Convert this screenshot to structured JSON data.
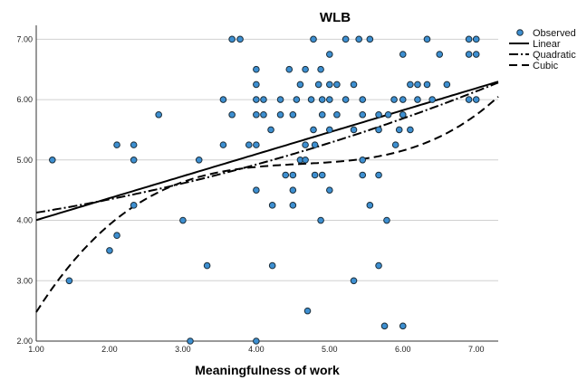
{
  "chart_data": {
    "type": "scatter",
    "title": "WLB",
    "xlabel": "Meaningfulness of work",
    "ylabel": "",
    "xlim": [
      1.0,
      7.3
    ],
    "ylim": [
      2.0,
      7.2
    ],
    "x_ticks": [
      "1.00",
      "2.00",
      "3.00",
      "4.00",
      "5.00",
      "6.00",
      "7.00"
    ],
    "y_ticks": [
      "2.00",
      "3.00",
      "4.00",
      "5.00",
      "6.00",
      "7.00"
    ],
    "grid": "horizontal",
    "legend_position": "top-right",
    "point_color": "#3d8fd1",
    "series": [
      {
        "name": "Observed",
        "kind": "points",
        "points": [
          [
            1.22,
            5.0
          ],
          [
            1.45,
            3.0
          ],
          [
            2.0,
            3.5
          ],
          [
            2.1,
            3.75
          ],
          [
            2.1,
            5.25
          ],
          [
            2.33,
            5.25
          ],
          [
            2.33,
            5.0
          ],
          [
            2.33,
            4.25
          ],
          [
            2.67,
            5.75
          ],
          [
            3.0,
            4.0
          ],
          [
            3.1,
            2.0
          ],
          [
            3.33,
            3.25
          ],
          [
            3.22,
            5.0
          ],
          [
            3.55,
            5.25
          ],
          [
            3.55,
            6.0
          ],
          [
            3.67,
            5.75
          ],
          [
            3.67,
            7.0
          ],
          [
            3.78,
            7.0
          ],
          [
            3.9,
            5.25
          ],
          [
            4.0,
            4.5
          ],
          [
            4.0,
            6.5
          ],
          [
            4.0,
            6.25
          ],
          [
            4.0,
            6.0
          ],
          [
            4.0,
            5.75
          ],
          [
            4.0,
            5.25
          ],
          [
            4.0,
            2.0
          ],
          [
            4.1,
            6.0
          ],
          [
            4.1,
            5.75
          ],
          [
            4.2,
            5.5
          ],
          [
            4.22,
            4.25
          ],
          [
            4.22,
            3.25
          ],
          [
            4.33,
            6.0
          ],
          [
            4.33,
            5.75
          ],
          [
            4.4,
            4.75
          ],
          [
            4.45,
            6.5
          ],
          [
            4.5,
            5.75
          ],
          [
            4.5,
            4.75
          ],
          [
            4.5,
            4.5
          ],
          [
            4.5,
            4.25
          ],
          [
            4.55,
            6.0
          ],
          [
            4.6,
            6.25
          ],
          [
            4.6,
            5.0
          ],
          [
            4.67,
            6.5
          ],
          [
            4.67,
            5.25
          ],
          [
            4.67,
            5.0
          ],
          [
            4.7,
            2.5
          ],
          [
            4.75,
            6.0
          ],
          [
            4.78,
            7.0
          ],
          [
            4.78,
            5.5
          ],
          [
            4.8,
            5.25
          ],
          [
            4.8,
            4.75
          ],
          [
            4.85,
            6.25
          ],
          [
            4.88,
            6.5
          ],
          [
            4.9,
            6.0
          ],
          [
            4.9,
            5.75
          ],
          [
            4.9,
            4.75
          ],
          [
            4.88,
            4.0
          ],
          [
            5.0,
            6.25
          ],
          [
            5.0,
            6.0
          ],
          [
            5.0,
            5.5
          ],
          [
            5.0,
            4.5
          ],
          [
            5.0,
            6.75
          ],
          [
            5.1,
            6.25
          ],
          [
            5.1,
            5.75
          ],
          [
            5.22,
            7.0
          ],
          [
            5.22,
            6.0
          ],
          [
            5.33,
            6.25
          ],
          [
            5.33,
            5.5
          ],
          [
            5.33,
            3.0
          ],
          [
            5.4,
            7.0
          ],
          [
            5.45,
            6.0
          ],
          [
            5.45,
            5.75
          ],
          [
            5.45,
            5.0
          ],
          [
            5.45,
            4.75
          ],
          [
            5.55,
            7.0
          ],
          [
            5.55,
            4.25
          ],
          [
            5.67,
            5.75
          ],
          [
            5.67,
            5.5
          ],
          [
            5.67,
            4.75
          ],
          [
            5.67,
            3.25
          ],
          [
            5.75,
            2.25
          ],
          [
            5.78,
            4.0
          ],
          [
            5.8,
            5.75
          ],
          [
            5.88,
            6.0
          ],
          [
            5.9,
            5.25
          ],
          [
            5.95,
            5.5
          ],
          [
            6.0,
            6.75
          ],
          [
            6.0,
            6.0
          ],
          [
            6.0,
            5.75
          ],
          [
            6.0,
            2.25
          ],
          [
            6.1,
            6.25
          ],
          [
            6.1,
            5.5
          ],
          [
            6.2,
            6.25
          ],
          [
            6.2,
            6.0
          ],
          [
            6.33,
            7.0
          ],
          [
            6.33,
            6.25
          ],
          [
            6.4,
            6.0
          ],
          [
            6.5,
            6.75
          ],
          [
            6.6,
            6.25
          ],
          [
            6.9,
            7.0
          ],
          [
            6.9,
            6.75
          ],
          [
            7.0,
            7.0
          ],
          [
            7.0,
            6.75
          ],
          [
            7.0,
            6.0
          ],
          [
            6.9,
            6.0
          ]
        ]
      },
      {
        "name": "Linear",
        "kind": "fit",
        "dash": "solid",
        "coef": [
          3.64,
          0.364
        ]
      },
      {
        "name": "Quadratic",
        "kind": "fit",
        "dash": "dashdot",
        "coef": [
          3.955,
          0.15,
          0.0231
        ]
      },
      {
        "name": "Cubic",
        "kind": "fit",
        "dash": "dashed",
        "coef": [
          0.0,
          3.09,
          -0.658,
          0.0477
        ]
      }
    ]
  }
}
